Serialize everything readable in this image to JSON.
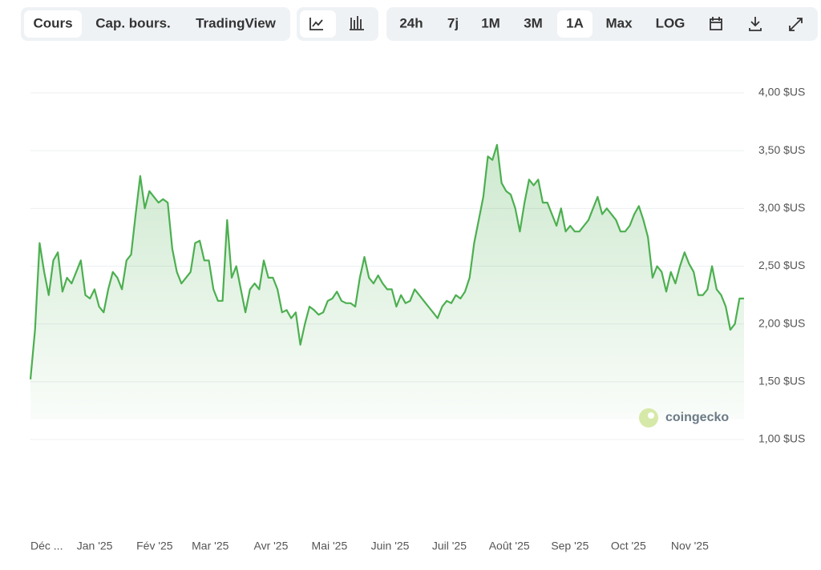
{
  "toolbar": {
    "views": [
      "Cours",
      "Cap. bours.",
      "TradingView"
    ],
    "active_view": "Cours",
    "ranges": [
      "24h",
      "7j",
      "1M",
      "3M",
      "1A",
      "Max",
      "LOG"
    ],
    "active_range": "1A"
  },
  "watermark": "coingecko",
  "chart_data": {
    "type": "line",
    "color": "#4caf50",
    "values": [
      1.52,
      1.95,
      2.7,
      2.45,
      2.25,
      2.55,
      2.62,
      2.28,
      2.4,
      2.35,
      2.45,
      2.55,
      2.25,
      2.22,
      2.3,
      2.15,
      2.1,
      2.3,
      2.45,
      2.4,
      2.3,
      2.55,
      2.6,
      2.95,
      3.28,
      3.0,
      3.15,
      3.1,
      3.05,
      3.08,
      3.05,
      2.65,
      2.45,
      2.35,
      2.4,
      2.45,
      2.7,
      2.72,
      2.55,
      2.55,
      2.3,
      2.2,
      2.2,
      2.9,
      2.4,
      2.5,
      2.3,
      2.1,
      2.3,
      2.35,
      2.3,
      2.55,
      2.4,
      2.4,
      2.3,
      2.1,
      2.12,
      2.05,
      2.1,
      1.82,
      2.0,
      2.15,
      2.12,
      2.08,
      2.1,
      2.2,
      2.22,
      2.28,
      2.2,
      2.18,
      2.18,
      2.15,
      2.4,
      2.58,
      2.4,
      2.35,
      2.42,
      2.35,
      2.3,
      2.3,
      2.15,
      2.25,
      2.18,
      2.2,
      2.3,
      2.25,
      2.2,
      2.15,
      2.1,
      2.05,
      2.15,
      2.2,
      2.18,
      2.25,
      2.22,
      2.28,
      2.4,
      2.7,
      2.9,
      3.1,
      3.45,
      3.42,
      3.55,
      3.22,
      3.15,
      3.12,
      3.0,
      2.8,
      3.05,
      3.25,
      3.2,
      3.25,
      3.05,
      3.05,
      2.95,
      2.85,
      3.0,
      2.8,
      2.85,
      2.8,
      2.8,
      2.85,
      2.9,
      3.0,
      3.1,
      2.95,
      3.0,
      2.95,
      2.9,
      2.8,
      2.8,
      2.85,
      2.95,
      3.02,
      2.9,
      2.75,
      2.4,
      2.5,
      2.45,
      2.28,
      2.45,
      2.35,
      2.5,
      2.62,
      2.52,
      2.45,
      2.25,
      2.25,
      2.3,
      2.5,
      2.3,
      2.25,
      2.15,
      1.95,
      2.0,
      2.22,
      2.22
    ],
    "xlim": [
      0,
      1
    ],
    "xticks": [
      {
        "value": 0,
        "label": "Déc ..."
      },
      {
        "value": 0.09,
        "label": "Jan '25"
      },
      {
        "value": 0.174,
        "label": "Fév '25"
      },
      {
        "value": 0.252,
        "label": "Mar '25"
      },
      {
        "value": 0.337,
        "label": "Avr '25"
      },
      {
        "value": 0.419,
        "label": "Mai '25"
      },
      {
        "value": 0.504,
        "label": "Juin '25"
      },
      {
        "value": 0.587,
        "label": "Juil '25"
      },
      {
        "value": 0.671,
        "label": "Août '25"
      },
      {
        "value": 0.756,
        "label": "Sep '25"
      },
      {
        "value": 0.838,
        "label": "Oct '25"
      },
      {
        "value": 0.924,
        "label": "Nov '25"
      }
    ],
    "ylim": [
      1,
      4
    ],
    "yticks": [
      {
        "value": 1,
        "label": "1,00 $US"
      },
      {
        "value": 1.5,
        "label": "1,50 $US"
      },
      {
        "value": 2,
        "label": "2,00 $US"
      },
      {
        "value": 2.5,
        "label": "2,50 $US"
      },
      {
        "value": 3,
        "label": "3,00 $US"
      },
      {
        "value": 3.5,
        "label": "3,50 $US"
      },
      {
        "value": 4,
        "label": "4,00 $US"
      }
    ],
    "grid": true
  }
}
